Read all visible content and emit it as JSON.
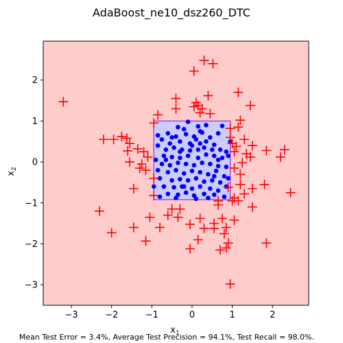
{
  "chart_data": {
    "type": "scatter",
    "title": "AdaBoost_ne10_dsz260_DTC",
    "xlabel": "x",
    "xlabel_sub": "1",
    "ylabel": "x",
    "ylabel_sub": "2",
    "xlim": [
      -3.7,
      2.9
    ],
    "ylim": [
      -3.5,
      2.95
    ],
    "xticks": [
      -3,
      -2,
      -1,
      0,
      1,
      2
    ],
    "yticks": [
      -3,
      -2,
      -1,
      0,
      1,
      2
    ],
    "grid": false,
    "footer": "Mean Test Error = 3.4%, Average Test Precision = 94.1%, Test Recall = 98.0%.",
    "colors": {
      "background_region": "#ffcccc",
      "decision_region": "#ccccff",
      "decision_region_edge": "#8a2be2",
      "positive_marker": "#0000ff",
      "negative_marker": "#ff0000"
    },
    "decision_box": {
      "x": [
        -0.95,
        0.95
      ],
      "y": [
        -0.92,
        1.0
      ]
    },
    "series": [
      {
        "marker": "circle",
        "color": "#0000ff",
        "points": [
          [
            -0.1,
            0.98
          ],
          [
            -0.35,
            0.85
          ],
          [
            -0.2,
            0.8
          ],
          [
            0.15,
            0.87
          ],
          [
            0.35,
            0.9
          ],
          [
            0.75,
            0.88
          ],
          [
            0.65,
            0.7
          ],
          [
            -0.6,
            0.7
          ],
          [
            -0.4,
            0.62
          ],
          [
            -0.15,
            0.68
          ],
          [
            0.05,
            0.62
          ],
          [
            0.25,
            0.72
          ],
          [
            0.45,
            0.6
          ],
          [
            -0.75,
            0.55
          ],
          [
            -0.55,
            0.45
          ],
          [
            -0.3,
            0.5
          ],
          [
            -0.05,
            0.45
          ],
          [
            0.1,
            0.55
          ],
          [
            0.2,
            0.45
          ],
          [
            0.35,
            0.5
          ],
          [
            0.55,
            0.42
          ],
          [
            -0.85,
            0.4
          ],
          [
            -0.65,
            0.3
          ],
          [
            -0.45,
            0.35
          ],
          [
            -0.25,
            0.3
          ],
          [
            -0.05,
            0.28
          ],
          [
            0.15,
            0.3
          ],
          [
            0.3,
            0.35
          ],
          [
            0.5,
            0.3
          ],
          [
            0.7,
            0.3
          ],
          [
            0.85,
            0.25
          ],
          [
            0.9,
            0.15
          ],
          [
            0.75,
            0.1
          ],
          [
            0.55,
            0.15
          ],
          [
            0.35,
            0.18
          ],
          [
            0.15,
            0.1
          ],
          [
            -0.1,
            0.15
          ],
          [
            -0.3,
            0.1
          ],
          [
            -0.5,
            0.12
          ],
          [
            -0.7,
            0.15
          ],
          [
            -0.9,
            0.05
          ],
          [
            -0.75,
            -0.05
          ],
          [
            -0.55,
            -0.08
          ],
          [
            -0.35,
            -0.02
          ],
          [
            -0.15,
            -0.05
          ],
          [
            0.05,
            -0.08
          ],
          [
            0.25,
            -0.02
          ],
          [
            0.45,
            -0.05
          ],
          [
            0.65,
            -0.1
          ],
          [
            0.85,
            -0.12
          ],
          [
            -0.85,
            -0.2
          ],
          [
            -0.6,
            -0.25
          ],
          [
            -0.4,
            -0.2
          ],
          [
            -0.2,
            -0.28
          ],
          [
            0.0,
            -0.22
          ],
          [
            0.2,
            -0.25
          ],
          [
            0.4,
            -0.3
          ],
          [
            0.6,
            -0.22
          ],
          [
            0.8,
            -0.35
          ],
          [
            -0.8,
            -0.4
          ],
          [
            -0.5,
            -0.45
          ],
          [
            -0.3,
            -0.42
          ],
          [
            -0.1,
            -0.45
          ],
          [
            0.1,
            -0.4
          ],
          [
            0.3,
            -0.48
          ],
          [
            0.5,
            -0.45
          ],
          [
            0.7,
            -0.5
          ],
          [
            -0.7,
            -0.6
          ],
          [
            -0.45,
            -0.62
          ],
          [
            -0.25,
            -0.6
          ],
          [
            0.0,
            -0.65
          ],
          [
            0.2,
            -0.6
          ],
          [
            0.45,
            -0.65
          ],
          [
            0.65,
            -0.7
          ],
          [
            0.85,
            -0.6
          ],
          [
            -0.6,
            -0.78
          ],
          [
            -0.35,
            -0.8
          ],
          [
            -0.15,
            -0.75
          ],
          [
            0.05,
            -0.82
          ],
          [
            0.3,
            -0.78
          ],
          [
            0.55,
            -0.8
          ],
          [
            -0.8,
            -0.85
          ],
          [
            -0.4,
            -0.88
          ],
          [
            0.1,
            -0.9
          ],
          [
            0.4,
            -0.88
          ],
          [
            0.8,
            -0.85
          ],
          [
            -0.95,
            -0.6
          ],
          [
            0.95,
            0.5
          ],
          [
            -0.3,
            0.25
          ],
          [
            0.65,
            0.05
          ],
          [
            -0.65,
            0.05
          ],
          [
            0.2,
            0.75
          ],
          [
            -0.2,
            -0.6
          ],
          [
            0.55,
            -0.35
          ],
          [
            -0.5,
            0.6
          ],
          [
            0.0,
            0.4
          ],
          [
            -0.85,
            0.65
          ],
          [
            0.9,
            -0.4
          ]
        ]
      },
      {
        "marker": "plus",
        "color": "#ff0000",
        "points": [
          [
            0.3,
            2.48
          ],
          [
            0.52,
            2.4
          ],
          [
            0.05,
            2.22
          ],
          [
            -3.2,
            1.47
          ],
          [
            1.15,
            1.7
          ],
          [
            0.4,
            1.62
          ],
          [
            -0.4,
            1.55
          ],
          [
            0.1,
            1.45
          ],
          [
            0.15,
            1.38
          ],
          [
            1.45,
            1.38
          ],
          [
            -0.4,
            1.3
          ],
          [
            0.2,
            1.2
          ],
          [
            0.45,
            1.18
          ],
          [
            -0.85,
            1.15
          ],
          [
            1.2,
            1.02
          ],
          [
            0.95,
            0.82
          ],
          [
            -1.75,
            0.62
          ],
          [
            -1.62,
            0.58
          ],
          [
            -2.2,
            0.55
          ],
          [
            -1.55,
            0.45
          ],
          [
            1.3,
            0.55
          ],
          [
            1.1,
            0.38
          ],
          [
            1.5,
            0.4
          ],
          [
            1.85,
            0.28
          ],
          [
            2.3,
            0.3
          ],
          [
            -1.6,
            0.27
          ],
          [
            -1.35,
            0.32
          ],
          [
            -1.2,
            0.25
          ],
          [
            1.05,
            0.25
          ],
          [
            1.35,
            0.2
          ],
          [
            -1.1,
            0.12
          ],
          [
            1.45,
            0.12
          ],
          [
            2.2,
            0.12
          ],
          [
            -1.55,
            0.0
          ],
          [
            1.25,
            -0.02
          ],
          [
            -1.3,
            -0.15
          ],
          [
            -1.15,
            -0.2
          ],
          [
            1.05,
            -0.15
          ],
          [
            1.2,
            -0.3
          ],
          [
            -0.95,
            -0.4
          ],
          [
            1.2,
            -0.55
          ],
          [
            1.8,
            -0.55
          ],
          [
            -1.45,
            -0.65
          ],
          [
            1.5,
            -0.65
          ],
          [
            -0.95,
            -0.82
          ],
          [
            1.3,
            -0.78
          ],
          [
            2.45,
            -0.75
          ],
          [
            1.05,
            -0.88
          ],
          [
            0.65,
            -0.95
          ],
          [
            1.0,
            -0.95
          ],
          [
            -0.5,
            -1.15
          ],
          [
            -0.6,
            -1.3
          ],
          [
            0.65,
            -1.05
          ],
          [
            1.5,
            -1.1
          ],
          [
            -2.3,
            -1.2
          ],
          [
            -0.3,
            -1.15
          ],
          [
            -0.35,
            -1.35
          ],
          [
            -1.05,
            -1.35
          ],
          [
            1.05,
            -1.42
          ],
          [
            0.2,
            -1.38
          ],
          [
            0.75,
            -1.38
          ],
          [
            0.85,
            -1.6
          ],
          [
            -1.45,
            -1.6
          ],
          [
            -0.8,
            -1.6
          ],
          [
            0.3,
            -1.62
          ],
          [
            0.55,
            -1.62
          ],
          [
            -2.0,
            -1.73
          ],
          [
            0.8,
            -1.75
          ],
          [
            0.15,
            -1.9
          ],
          [
            -1.15,
            -1.93
          ],
          [
            0.9,
            -1.98
          ],
          [
            1.85,
            -1.98
          ],
          [
            0.85,
            -2.1
          ],
          [
            0.7,
            -2.15
          ],
          [
            -0.05,
            -2.12
          ],
          [
            0.95,
            -2.98
          ],
          [
            0.55,
            -1.5
          ],
          [
            -0.05,
            -1.52
          ],
          [
            0.9,
            -0.62
          ],
          [
            1.15,
            -0.95
          ],
          [
            -1.95,
            0.55
          ],
          [
            1.15,
            0.85
          ],
          [
            -1.25,
            -0.05
          ],
          [
            0.25,
            1.3
          ],
          [
            0.05,
            1.35
          ],
          [
            1.0,
            0.45
          ],
          [
            0.95,
            0.6
          ],
          [
            -0.95,
            0.95
          ]
        ]
      }
    ]
  }
}
